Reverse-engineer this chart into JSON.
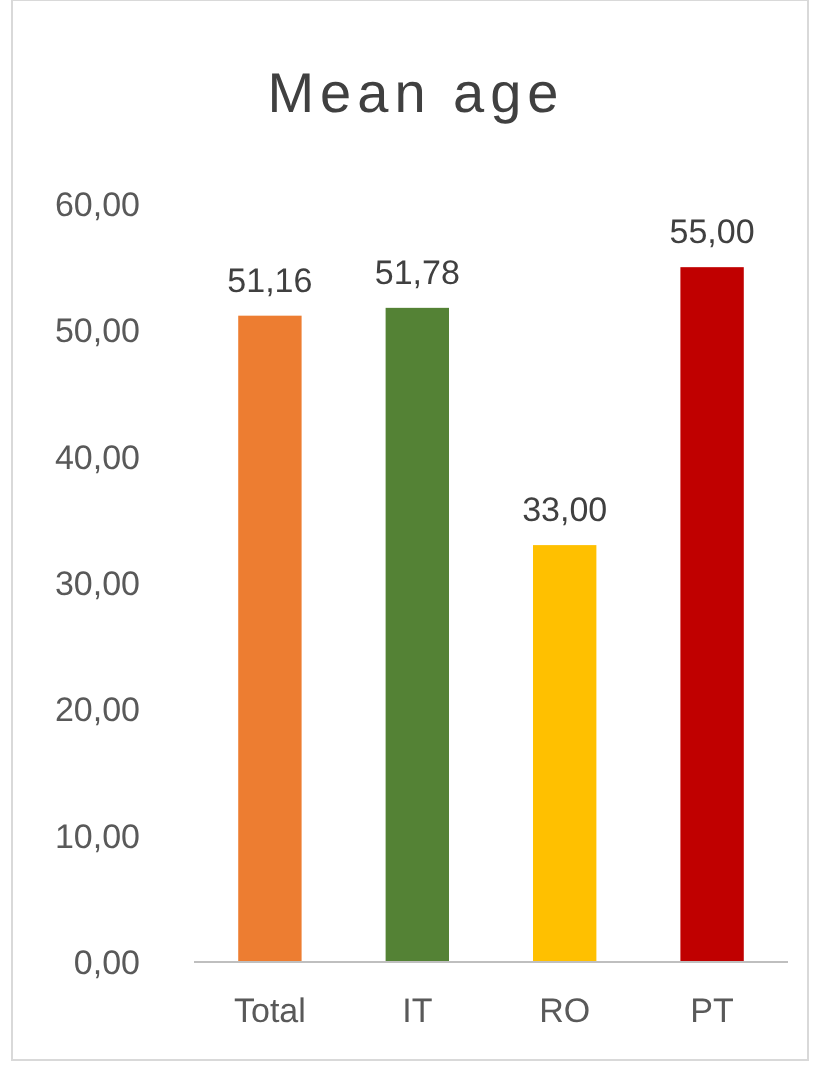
{
  "chart_data": {
    "type": "bar",
    "title": "Mean age",
    "categories": [
      "Total",
      "IT",
      "RO",
      "PT"
    ],
    "values": [
      51.16,
      51.78,
      33,
      55
    ],
    "colors": [
      "#ed7d31",
      "#548235",
      "#ffc000",
      "#c00000"
    ],
    "value_labels": [
      "51,16",
      "51,78",
      "33,00",
      "55,00"
    ],
    "ylim": [
      0,
      60
    ],
    "yticks": [
      {
        "value": 0,
        "label": "0,00"
      },
      {
        "value": 10,
        "label": "10,00"
      },
      {
        "value": 20,
        "label": "20,00"
      },
      {
        "value": 30,
        "label": "30,00"
      },
      {
        "value": 40,
        "label": "40,00"
      },
      {
        "value": 50,
        "label": "50,00"
      },
      {
        "value": 60,
        "label": "60,00"
      }
    ],
    "grid": false
  }
}
